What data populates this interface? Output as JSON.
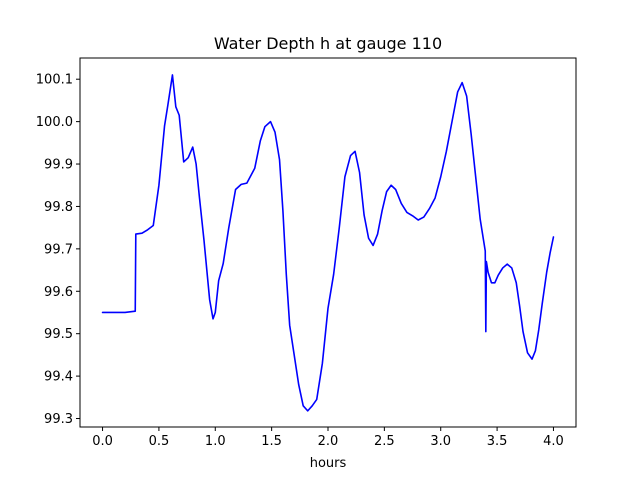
{
  "chart_data": {
    "type": "line",
    "title": "Water Depth h at gauge 110",
    "xlabel": "hours",
    "ylabel": "",
    "xlim": [
      -0.2,
      4.2
    ],
    "ylim": [
      99.28,
      100.15
    ],
    "xticks": [
      0.0,
      0.5,
      1.0,
      1.5,
      2.0,
      2.5,
      3.0,
      3.5,
      4.0
    ],
    "xtick_labels": [
      "0.0",
      "0.5",
      "1.0",
      "1.5",
      "2.0",
      "2.5",
      "3.0",
      "3.5",
      "4.0"
    ],
    "yticks": [
      99.3,
      99.4,
      99.5,
      99.6,
      99.7,
      99.8,
      99.9,
      100.0,
      100.1
    ],
    "ytick_labels": [
      "99.3",
      "99.4",
      "99.5",
      "99.6",
      "99.7",
      "99.8",
      "99.9",
      "100.0",
      "100.1"
    ],
    "grid": false,
    "series": [
      {
        "color": "#0000ff",
        "x": [
          0.0,
          0.1,
          0.2,
          0.29,
          0.295,
          0.35,
          0.4,
          0.45,
          0.5,
          0.55,
          0.58,
          0.62,
          0.65,
          0.68,
          0.72,
          0.76,
          0.8,
          0.83,
          0.86,
          0.9,
          0.95,
          0.98,
          1.0,
          1.03,
          1.07,
          1.12,
          1.18,
          1.23,
          1.28,
          1.35,
          1.4,
          1.44,
          1.49,
          1.53,
          1.57,
          1.6,
          1.63,
          1.66,
          1.7,
          1.74,
          1.78,
          1.82,
          1.86,
          1.9,
          1.95,
          2.0,
          2.05,
          2.1,
          2.15,
          2.2,
          2.24,
          2.28,
          2.32,
          2.36,
          2.4,
          2.44,
          2.48,
          2.52,
          2.56,
          2.6,
          2.65,
          2.7,
          2.75,
          2.8,
          2.85,
          2.9,
          2.95,
          3.0,
          3.05,
          3.1,
          3.15,
          3.19,
          3.23,
          3.27,
          3.31,
          3.35,
          3.38,
          3.395,
          3.4,
          3.405,
          3.42,
          3.45,
          3.48,
          3.51,
          3.55,
          3.59,
          3.63,
          3.67,
          3.7,
          3.73,
          3.77,
          3.81,
          3.84,
          3.87,
          3.9,
          3.94,
          3.97,
          4.0
        ],
        "y": [
          99.55,
          99.55,
          99.55,
          99.553,
          99.735,
          99.737,
          99.745,
          99.755,
          99.85,
          99.99,
          100.04,
          100.11,
          100.035,
          100.015,
          99.905,
          99.915,
          99.94,
          99.9,
          99.82,
          99.72,
          99.58,
          99.535,
          99.55,
          99.625,
          99.665,
          99.75,
          99.84,
          99.852,
          99.855,
          99.89,
          99.955,
          99.988,
          100.0,
          99.975,
          99.91,
          99.79,
          99.64,
          99.52,
          99.45,
          99.38,
          99.33,
          99.318,
          99.33,
          99.345,
          99.43,
          99.56,
          99.64,
          99.75,
          99.87,
          99.92,
          99.93,
          99.88,
          99.78,
          99.725,
          99.708,
          99.735,
          99.79,
          99.835,
          99.85,
          99.84,
          99.807,
          99.786,
          99.778,
          99.768,
          99.775,
          99.795,
          99.82,
          99.87,
          99.93,
          100.0,
          100.07,
          100.092,
          100.06,
          99.97,
          99.87,
          99.77,
          99.72,
          99.695,
          99.505,
          99.67,
          99.645,
          99.62,
          99.62,
          99.638,
          99.655,
          99.664,
          99.655,
          99.62,
          99.565,
          99.505,
          99.455,
          99.44,
          99.46,
          99.51,
          99.57,
          99.645,
          99.69,
          99.728
        ]
      }
    ]
  }
}
